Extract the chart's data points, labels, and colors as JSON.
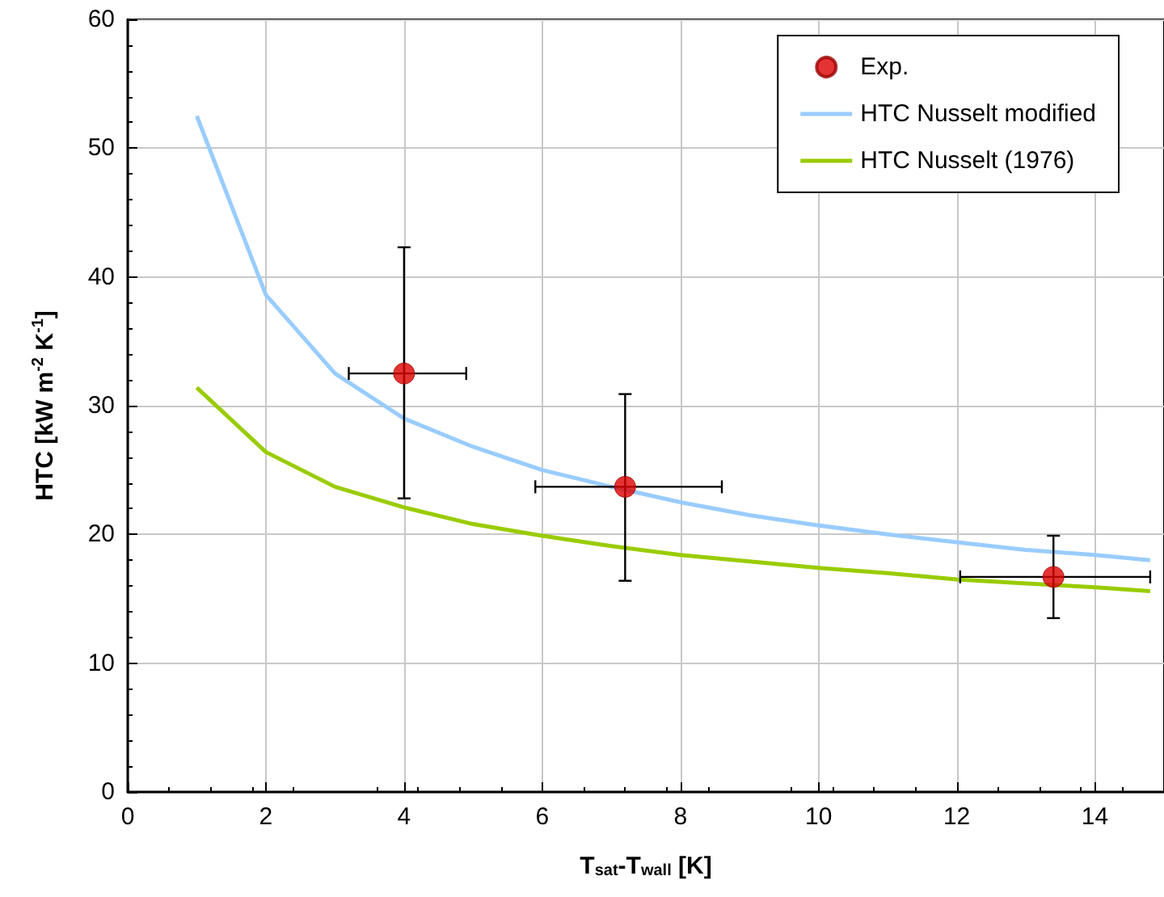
{
  "chart_data": {
    "type": "line",
    "xlabel": "T$_{sat}$-T$_{wall}$ [K]",
    "ylabel": "HTC [kW m$^{-2}$ K$^{-1}$]",
    "xlim": [
      0,
      15
    ],
    "xticks": [
      0,
      2,
      4,
      6,
      8,
      10,
      12,
      14
    ],
    "ylim": [
      0,
      60
    ],
    "yticks": [
      0,
      10,
      20,
      30,
      40,
      50,
      60
    ],
    "grid": true,
    "legend": "top right",
    "series": [
      {
        "name": "Exp.",
        "type": "scatter",
        "color": "#dd0000",
        "marker": "circle",
        "x": [
          4.0,
          7.2,
          13.4
        ],
        "values": [
          32.5,
          23.7,
          16.7
        ],
        "errors": [
          [
            22.8,
            42.3
          ],
          [
            16.4,
            30.9
          ],
          [
            13.5,
            19.9
          ]
        ],
        "xerrors": [
          [
            3.2,
            4.9
          ],
          [
            5.9,
            8.6
          ],
          [
            12.05,
            14.8
          ]
        ]
      },
      {
        "name": "HTC Nusselt modified",
        "color": "#99ccff",
        "marker": "none",
        "x": [
          1,
          2,
          3,
          4,
          5,
          6,
          7,
          8,
          9,
          10,
          11,
          12,
          13,
          14,
          14.8
        ],
        "values": [
          52.5,
          38.6,
          32.5,
          29.0,
          26.8,
          25.0,
          23.7,
          22.5,
          21.5,
          20.7,
          20.0,
          19.4,
          18.8,
          18.4,
          18.0
        ]
      },
      {
        "name": "HTC Nusselt (1976)",
        "color": "#99cc00",
        "marker": "none",
        "x": [
          1,
          2,
          3,
          4,
          5,
          6,
          7,
          8,
          9,
          10,
          11,
          12,
          13,
          14,
          14.8
        ],
        "values": [
          31.4,
          26.4,
          23.7,
          22.1,
          20.8,
          19.9,
          19.1,
          18.4,
          17.9,
          17.4,
          17.0,
          16.5,
          16.2,
          15.9,
          15.6
        ]
      }
    ]
  }
}
